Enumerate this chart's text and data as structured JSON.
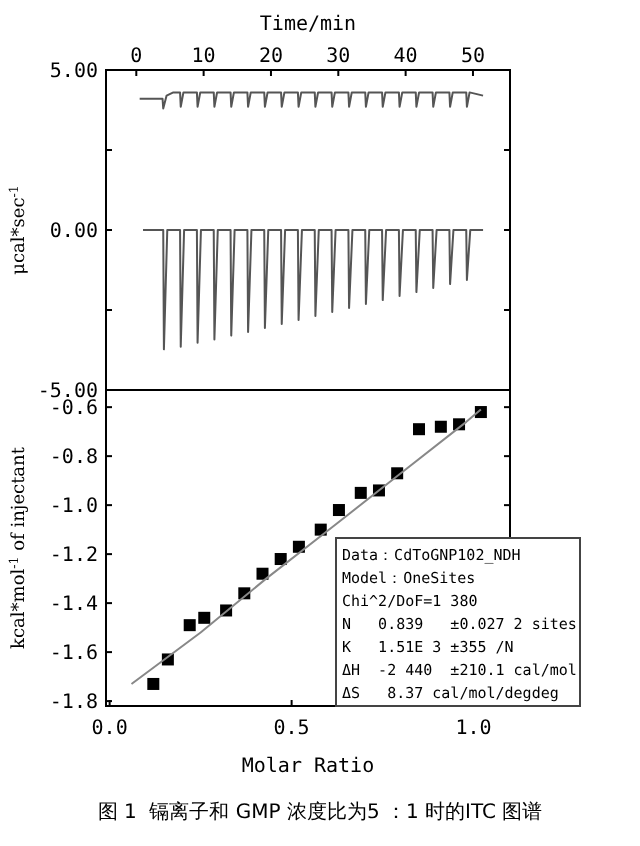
{
  "chart_data": [
    {
      "type": "line",
      "xlabel": "Time/min",
      "ylabel": "μcal*sec$^{-1}$",
      "xlim": [
        -4.5,
        55.5
      ],
      "xticks": [
        0,
        10,
        20,
        30,
        40,
        50
      ],
      "ylim": [
        -5,
        5
      ],
      "yticks": [
        {
          "value": 5,
          "label": "5.00"
        },
        {
          "value": 2.5,
          "label": null
        },
        {
          "value": 0,
          "label": "0.00"
        },
        {
          "value": -2.5,
          "label": null
        },
        {
          "value": -5,
          "label": "-5.00"
        }
      ],
      "grid": false,
      "series": [
        {
          "color": "#555555",
          "x": [
            0.5,
            3.9,
            4.0,
            4.5,
            5.5,
            6.5,
            6.6,
            7.0,
            9.0,
            9.1,
            9.5,
            11.5,
            11.6,
            12.0,
            14.0,
            14.1,
            14.5,
            16.5,
            16.6,
            17.0,
            19.0,
            19.1,
            19.5,
            21.5,
            21.6,
            22.0,
            24.0,
            24.1,
            24.5,
            26.5,
            26.6,
            27.0,
            29.0,
            29.1,
            29.5,
            31.5,
            31.6,
            32.0,
            34.0,
            34.1,
            34.5,
            36.5,
            36.6,
            37.0,
            39.0,
            39.1,
            39.5,
            41.5,
            41.6,
            42.0,
            44.0,
            44.1,
            44.5,
            46.5,
            46.6,
            47.0,
            49.0,
            49.1,
            49.5,
            51.5
          ],
          "values": [
            4.1,
            4.1,
            3.8,
            4.2,
            4.3,
            4.3,
            3.85,
            4.3,
            4.3,
            3.85,
            4.3,
            4.3,
            3.85,
            4.3,
            4.3,
            3.85,
            4.3,
            4.3,
            3.85,
            4.3,
            4.3,
            3.85,
            4.3,
            4.3,
            3.85,
            4.3,
            4.3,
            3.85,
            4.3,
            4.3,
            3.85,
            4.3,
            4.3,
            3.85,
            4.3,
            4.3,
            3.85,
            4.3,
            4.3,
            3.85,
            4.3,
            4.3,
            3.85,
            4.3,
            4.3,
            3.85,
            4.3,
            4.3,
            3.85,
            4.3,
            4.3,
            3.85,
            4.3,
            4.3,
            3.85,
            4.3,
            4.3,
            3.85,
            4.3,
            4.2
          ]
        },
        {
          "color": "#555555",
          "x": [
            1.0,
            4.0,
            4.1,
            4.6,
            6.5,
            6.6,
            7.1,
            9.0,
            9.1,
            9.6,
            11.5,
            11.6,
            12.1,
            14.0,
            14.1,
            14.6,
            16.5,
            16.6,
            17.1,
            19.0,
            19.1,
            19.6,
            21.5,
            21.6,
            22.1,
            24.0,
            24.1,
            24.6,
            26.5,
            26.6,
            27.1,
            29.0,
            29.1,
            29.6,
            31.5,
            31.6,
            32.1,
            34.0,
            34.1,
            34.6,
            36.5,
            36.6,
            37.1,
            39.0,
            39.1,
            39.6,
            41.5,
            41.6,
            42.1,
            44.0,
            44.1,
            44.6,
            46.5,
            46.6,
            47.1,
            49.0,
            49.1,
            49.6,
            51.5
          ],
          "values": [
            0,
            0,
            -3.73,
            0,
            0,
            -3.65,
            0,
            0,
            -3.52,
            0,
            0,
            -3.42,
            0,
            0,
            -3.3,
            0,
            0,
            -3.19,
            0,
            0,
            -3.06,
            0,
            0,
            -2.94,
            0,
            0,
            -2.81,
            0,
            0,
            -2.69,
            0,
            0,
            -2.56,
            0,
            0,
            -2.44,
            0,
            0,
            -2.31,
            0,
            0,
            -2.19,
            0,
            0,
            -2.06,
            0,
            0,
            -1.94,
            0,
            0,
            -1.81,
            0,
            0,
            -1.69,
            0,
            0,
            -1.56,
            0,
            0
          ]
        }
      ]
    },
    {
      "type": "scatter",
      "xlabel": "Molar Ratio",
      "ylabel": "kcal*mol$^{-1}$ of injectant",
      "xlim": [
        -0.01,
        1.1
      ],
      "xticks": [
        {
          "value": 0,
          "label": "0.0"
        },
        {
          "value": 0.5,
          "label": "0.5"
        },
        {
          "value": 1,
          "label": "1.0"
        }
      ],
      "ylim": [
        -1.82,
        -0.53
      ],
      "yticks": [
        {
          "value": -0.6,
          "label": "-0.6"
        },
        {
          "value": -0.8,
          "label": "-0.8"
        },
        {
          "value": -1,
          "label": "-1.0"
        },
        {
          "value": -1.2,
          "label": "-1.2"
        },
        {
          "value": -1.4,
          "label": "-1.4"
        },
        {
          "value": -1.6,
          "label": "-1.6"
        },
        {
          "value": -1.8,
          "label": "-1.8"
        }
      ],
      "grid": false,
      "series": [
        {
          "marker": "square",
          "color": "#000000",
          "x": [
            0.12,
            0.16,
            0.22,
            0.26,
            0.32,
            0.37,
            0.42,
            0.47,
            0.52,
            0.58,
            0.63,
            0.69,
            0.74,
            0.79,
            0.85,
            0.91,
            0.96,
            1.02
          ],
          "values": [
            -1.73,
            -1.63,
            -1.49,
            -1.46,
            -1.43,
            -1.36,
            -1.28,
            -1.22,
            -1.17,
            -1.1,
            -1.02,
            -0.95,
            -0.94,
            -0.87,
            -0.69,
            -0.68,
            -0.67,
            -0.62
          ]
        },
        {
          "type": "line",
          "marker": "none",
          "color": "#888888",
          "x": [
            0.06,
            0.25,
            0.43,
            0.62,
            0.8,
            0.98,
            1.02
          ],
          "values": [
            -1.73,
            -1.52,
            -1.3,
            -1.08,
            -0.87,
            -0.66,
            -0.61
          ]
        }
      ],
      "annotations": [
        "Data：CdToGNP102_NDH",
        "Model：OneSites",
        "Chi^2/DoF=1 380",
        "N   0.839   ±0.027 2 sites",
        "K   1.51E 3 ±355 /N",
        "ΔH  -2 440  ±210.1 cal/mol",
        "ΔS   8.37 cal/mol/degdeg",
        "图 1  镉离子和 GMP 浓度比为5 ：1 时的ITC 图谱"
      ]
    }
  ]
}
